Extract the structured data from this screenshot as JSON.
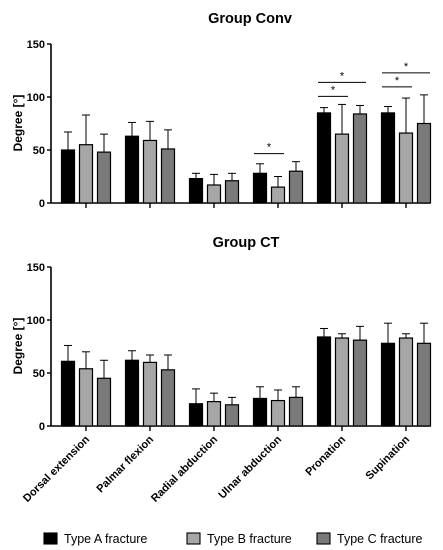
{
  "chart_data": [
    {
      "type": "bar",
      "title": "Group  Conv",
      "ylabel": "Degree [°]",
      "ylim": [
        0,
        150
      ],
      "yticks": [
        "0",
        "50",
        "100",
        "150"
      ],
      "categories": [
        "Dorsal extension",
        "Palmar flexion",
        "Radial abduction",
        "Ulnar abduction",
        "Pronation",
        "Supination"
      ],
      "series": [
        {
          "name": "Type A fracture",
          "values": [
            50,
            63,
            23,
            28,
            85,
            85
          ],
          "errors": [
            17,
            13,
            5,
            9,
            5,
            6
          ]
        },
        {
          "name": "Type B fracture",
          "values": [
            55,
            59,
            17,
            15,
            65,
            66
          ],
          "errors": [
            28,
            18,
            10,
            10,
            28,
            33
          ]
        },
        {
          "name": "Type C fracture",
          "values": [
            48,
            51,
            21,
            30,
            84,
            75
          ],
          "errors": [
            17,
            18,
            7,
            9,
            8,
            27
          ]
        }
      ],
      "significance": [
        {
          "category": 3,
          "from": 0,
          "to": 1,
          "label": "*"
        },
        {
          "category": 4,
          "from": 0,
          "to": 1,
          "label": "*"
        },
        {
          "category": 4,
          "from": 0,
          "to": 2,
          "label": "*"
        },
        {
          "category": 5,
          "from": 0,
          "to": 1,
          "label": "*"
        },
        {
          "category": 5,
          "from": 0,
          "to": 2,
          "label": "*"
        }
      ],
      "legend": "bottom"
    },
    {
      "type": "bar",
      "title": "Group CT",
      "ylabel": "Degree [°]",
      "ylim": [
        0,
        150
      ],
      "yticks": [
        "0",
        "50",
        "100",
        "150"
      ],
      "categories": [
        "Dorsal extension",
        "Palmar flexion",
        "Radial abduction",
        "Ulnar abduction",
        "Pronation",
        "Supination"
      ],
      "series": [
        {
          "name": "Type A fracture",
          "values": [
            61,
            62,
            21,
            26,
            84,
            78
          ],
          "errors": [
            15,
            9,
            14,
            11,
            8,
            19
          ]
        },
        {
          "name": "Type B fracture",
          "values": [
            54,
            60,
            23,
            24,
            83,
            83
          ],
          "errors": [
            16,
            7,
            8,
            10,
            4,
            4
          ]
        },
        {
          "name": "Type C fracture",
          "values": [
            45,
            53,
            20,
            27,
            81,
            78
          ],
          "errors": [
            17,
            14,
            7,
            10,
            13,
            19
          ]
        }
      ],
      "legend": "bottom"
    }
  ],
  "colors": {
    "series": [
      "#000000",
      "#a6a6a6",
      "#7a7a7a"
    ],
    "axis": "#000000"
  }
}
